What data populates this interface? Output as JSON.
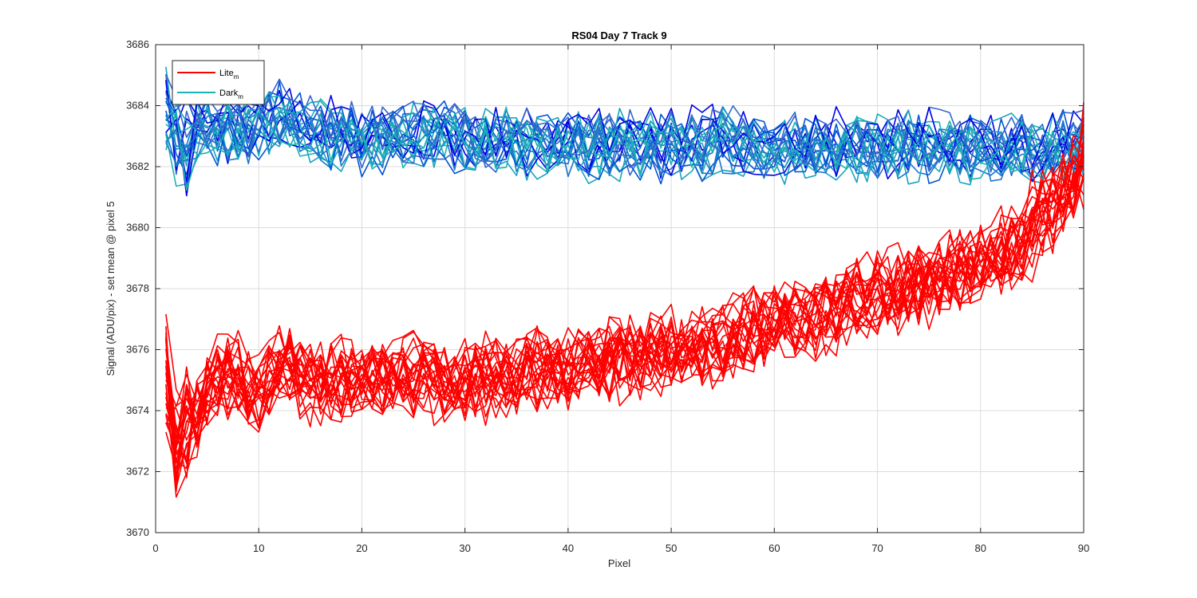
{
  "chart_data": {
    "type": "line",
    "title": "RS04 Day 7 Track 9",
    "xlabel": "Pixel",
    "ylabel": "Signal (ADU/pix) - set mean @ pixel 5",
    "xlim": [
      0,
      90
    ],
    "ylim": [
      3670,
      3686
    ],
    "xticks": [
      0,
      10,
      20,
      30,
      40,
      50,
      60,
      70,
      80,
      90
    ],
    "yticks": [
      3670,
      3672,
      3674,
      3676,
      3678,
      3680,
      3682,
      3684,
      3686
    ],
    "grid": true,
    "legend": {
      "placement": "top-left",
      "entries": [
        {
          "base": "Lite",
          "sub": "m",
          "color": "#ff0000"
        },
        {
          "base": "Dark",
          "sub": "m",
          "color": "#1ab3b3"
        }
      ]
    },
    "series_groups": [
      {
        "group": "Lite",
        "count": 24,
        "colors": [
          "#ff0000"
        ],
        "x": [
          1,
          2,
          3,
          4,
          5,
          6,
          8,
          10,
          12,
          15,
          20,
          25,
          30,
          35,
          40,
          45,
          50,
          55,
          60,
          65,
          70,
          75,
          80,
          85,
          88,
          90
        ],
        "mean": [
          3675.2,
          3673.0,
          3673.6,
          3674.0,
          3674.6,
          3675.1,
          3675.0,
          3674.4,
          3675.6,
          3674.9,
          3675.0,
          3675.1,
          3675.0,
          3675.2,
          3675.4,
          3675.7,
          3676.0,
          3676.3,
          3676.8,
          3677.2,
          3677.8,
          3678.2,
          3678.8,
          3679.8,
          3680.8,
          3682.0
        ],
        "spread": 1.2
      },
      {
        "group": "Dark",
        "count": 24,
        "colors": [
          "#0000e6",
          "#0055d4",
          "#1a75cc",
          "#1aa3bf",
          "#1ab3b3",
          "#3366cc"
        ],
        "x": [
          1,
          2,
          3,
          4,
          5,
          8,
          10,
          12,
          15,
          20,
          25,
          30,
          35,
          40,
          45,
          50,
          55,
          60,
          65,
          70,
          75,
          80,
          85,
          88,
          90
        ],
        "mean": [
          3684.0,
          3682.8,
          3682.6,
          3683.2,
          3683.4,
          3683.2,
          3683.4,
          3683.8,
          3683.3,
          3683.0,
          3683.1,
          3683.0,
          3682.9,
          3682.8,
          3682.8,
          3682.8,
          3682.9,
          3682.7,
          3682.8,
          3682.7,
          3682.8,
          3682.7,
          3682.6,
          3682.8,
          3682.9
        ],
        "spread": 1.0
      }
    ]
  }
}
